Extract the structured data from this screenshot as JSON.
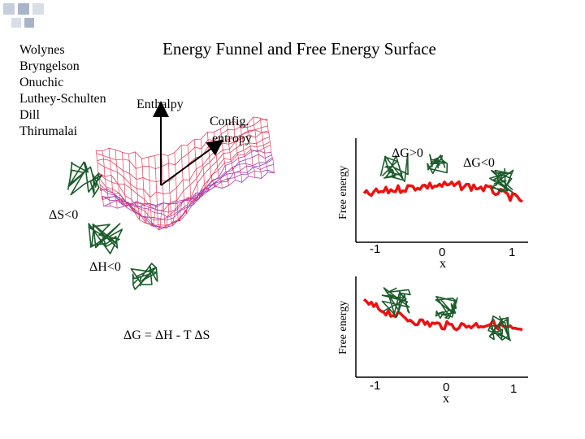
{
  "title": "Energy Funnel and Free Energy Surface",
  "authors": [
    "Wolynes",
    "Bryngelson",
    "Onuchic",
    "Luthey-Schulten",
    "Dill",
    "Thirumalai"
  ],
  "funnel": {
    "enthalpy_label": "Enthalpy",
    "entropy_label_1": "Config.",
    "entropy_label_2": "entropy",
    "dS_label": "ΔS<0",
    "dH_label": "ΔH<0",
    "equation": "ΔG = ΔH - T ΔS"
  },
  "top_plot": {
    "ylabel": "Free energy",
    "xlabel": "x",
    "ticks": [
      "-1",
      "0",
      "1"
    ],
    "left_annotation": "ΔG>0",
    "right_annotation": "ΔG<0"
  },
  "bottom_plot": {
    "ylabel": "Free energy",
    "xlabel": "x",
    "ticks": [
      "-1",
      "0",
      "1"
    ]
  },
  "colors": {
    "curve": "#ee1111",
    "chain": "#1a5c2a",
    "mesh": "#e8405c",
    "mesh_deep": "#9a3cc0",
    "deco": "#b8c0d0"
  }
}
